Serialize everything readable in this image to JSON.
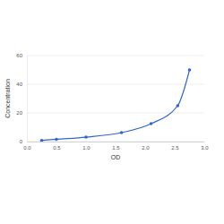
{
  "chart_data": {
    "type": "line",
    "x_label": "OD",
    "y_label": "Concentration",
    "x": [
      0.25,
      0.5,
      1.0,
      1.6,
      2.1,
      2.55,
      2.75
    ],
    "values": [
      0.8,
      1.6,
      3.1,
      6.25,
      12.5,
      25,
      50
    ],
    "color": "#3366cc",
    "marker": "circle",
    "line_style": "solid",
    "xlim": [
      0,
      3
    ],
    "xticks": [
      {
        "value": 0,
        "label": "0.0"
      },
      0.5,
      {
        "value": 1,
        "label": "1.0"
      },
      1.5,
      {
        "value": 2,
        "label": "2.0"
      },
      2.5,
      {
        "value": 3,
        "label": "3.0"
      }
    ],
    "ylim": [
      0,
      60
    ],
    "yticks": [
      0,
      20,
      40,
      60
    ],
    "grid": true
  }
}
